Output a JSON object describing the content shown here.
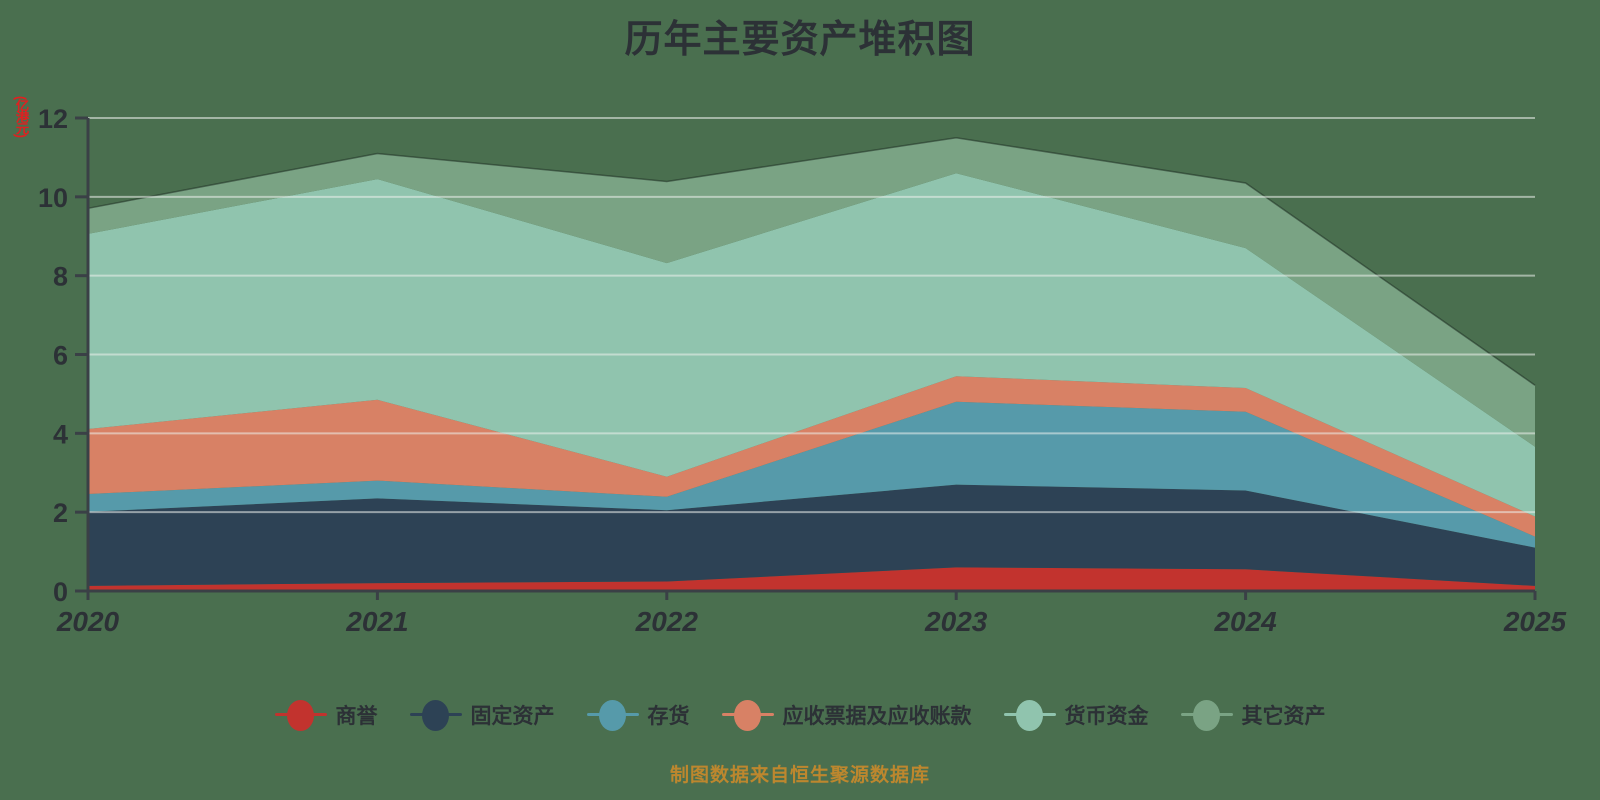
{
  "title": "历年主要资产堆积图",
  "footer": {
    "source_note": "制图数据来自恒生聚源数据库"
  },
  "colors": {
    "bg": "#4a6f4f",
    "text": "#2c3136",
    "unit": "#e02020",
    "note": "#bd872e",
    "axis": "#3a4046",
    "grid": "rgba(236,240,236,0.55)"
  },
  "chart_data": {
    "type": "area",
    "stacked": true,
    "title": "历年主要资产堆积图",
    "ylabel": "(亿港元)",
    "xlabel": "",
    "categories": [
      "2020",
      "2021",
      "2022",
      "2023",
      "2024",
      "2025"
    ],
    "yticks": [
      0,
      2,
      4,
      6,
      8,
      10,
      12
    ],
    "ylim": [
      0,
      12
    ],
    "grid": true,
    "legend_position": "bottom",
    "series": [
      {
        "name": "商誉",
        "key": "goodwill",
        "color": "#c2332e",
        "values": [
          0.13,
          0.2,
          0.24,
          0.6,
          0.55,
          0.13
        ]
      },
      {
        "name": "固定资产",
        "key": "fixed-assets",
        "color": "#2d4255",
        "values": [
          1.88,
          2.15,
          1.81,
          2.1,
          2.0,
          0.97
        ]
      },
      {
        "name": "存货",
        "key": "inventory",
        "color": "#569aaa",
        "values": [
          0.45,
          0.45,
          0.34,
          2.1,
          2.0,
          0.28
        ]
      },
      {
        "name": "应收票据及应收账款",
        "key": "receivables",
        "color": "#d88165",
        "values": [
          1.65,
          2.05,
          0.51,
          0.65,
          0.6,
          0.51
        ]
      },
      {
        "name": "货币资金",
        "key": "cash",
        "color": "#90c4ae",
        "values": [
          4.95,
          5.6,
          5.42,
          5.15,
          3.55,
          1.77
        ]
      },
      {
        "name": "其它资产",
        "key": "other-assets",
        "color": "#7aa384",
        "values": [
          0.65,
          0.65,
          2.07,
          0.9,
          1.65,
          1.56
        ]
      }
    ]
  }
}
